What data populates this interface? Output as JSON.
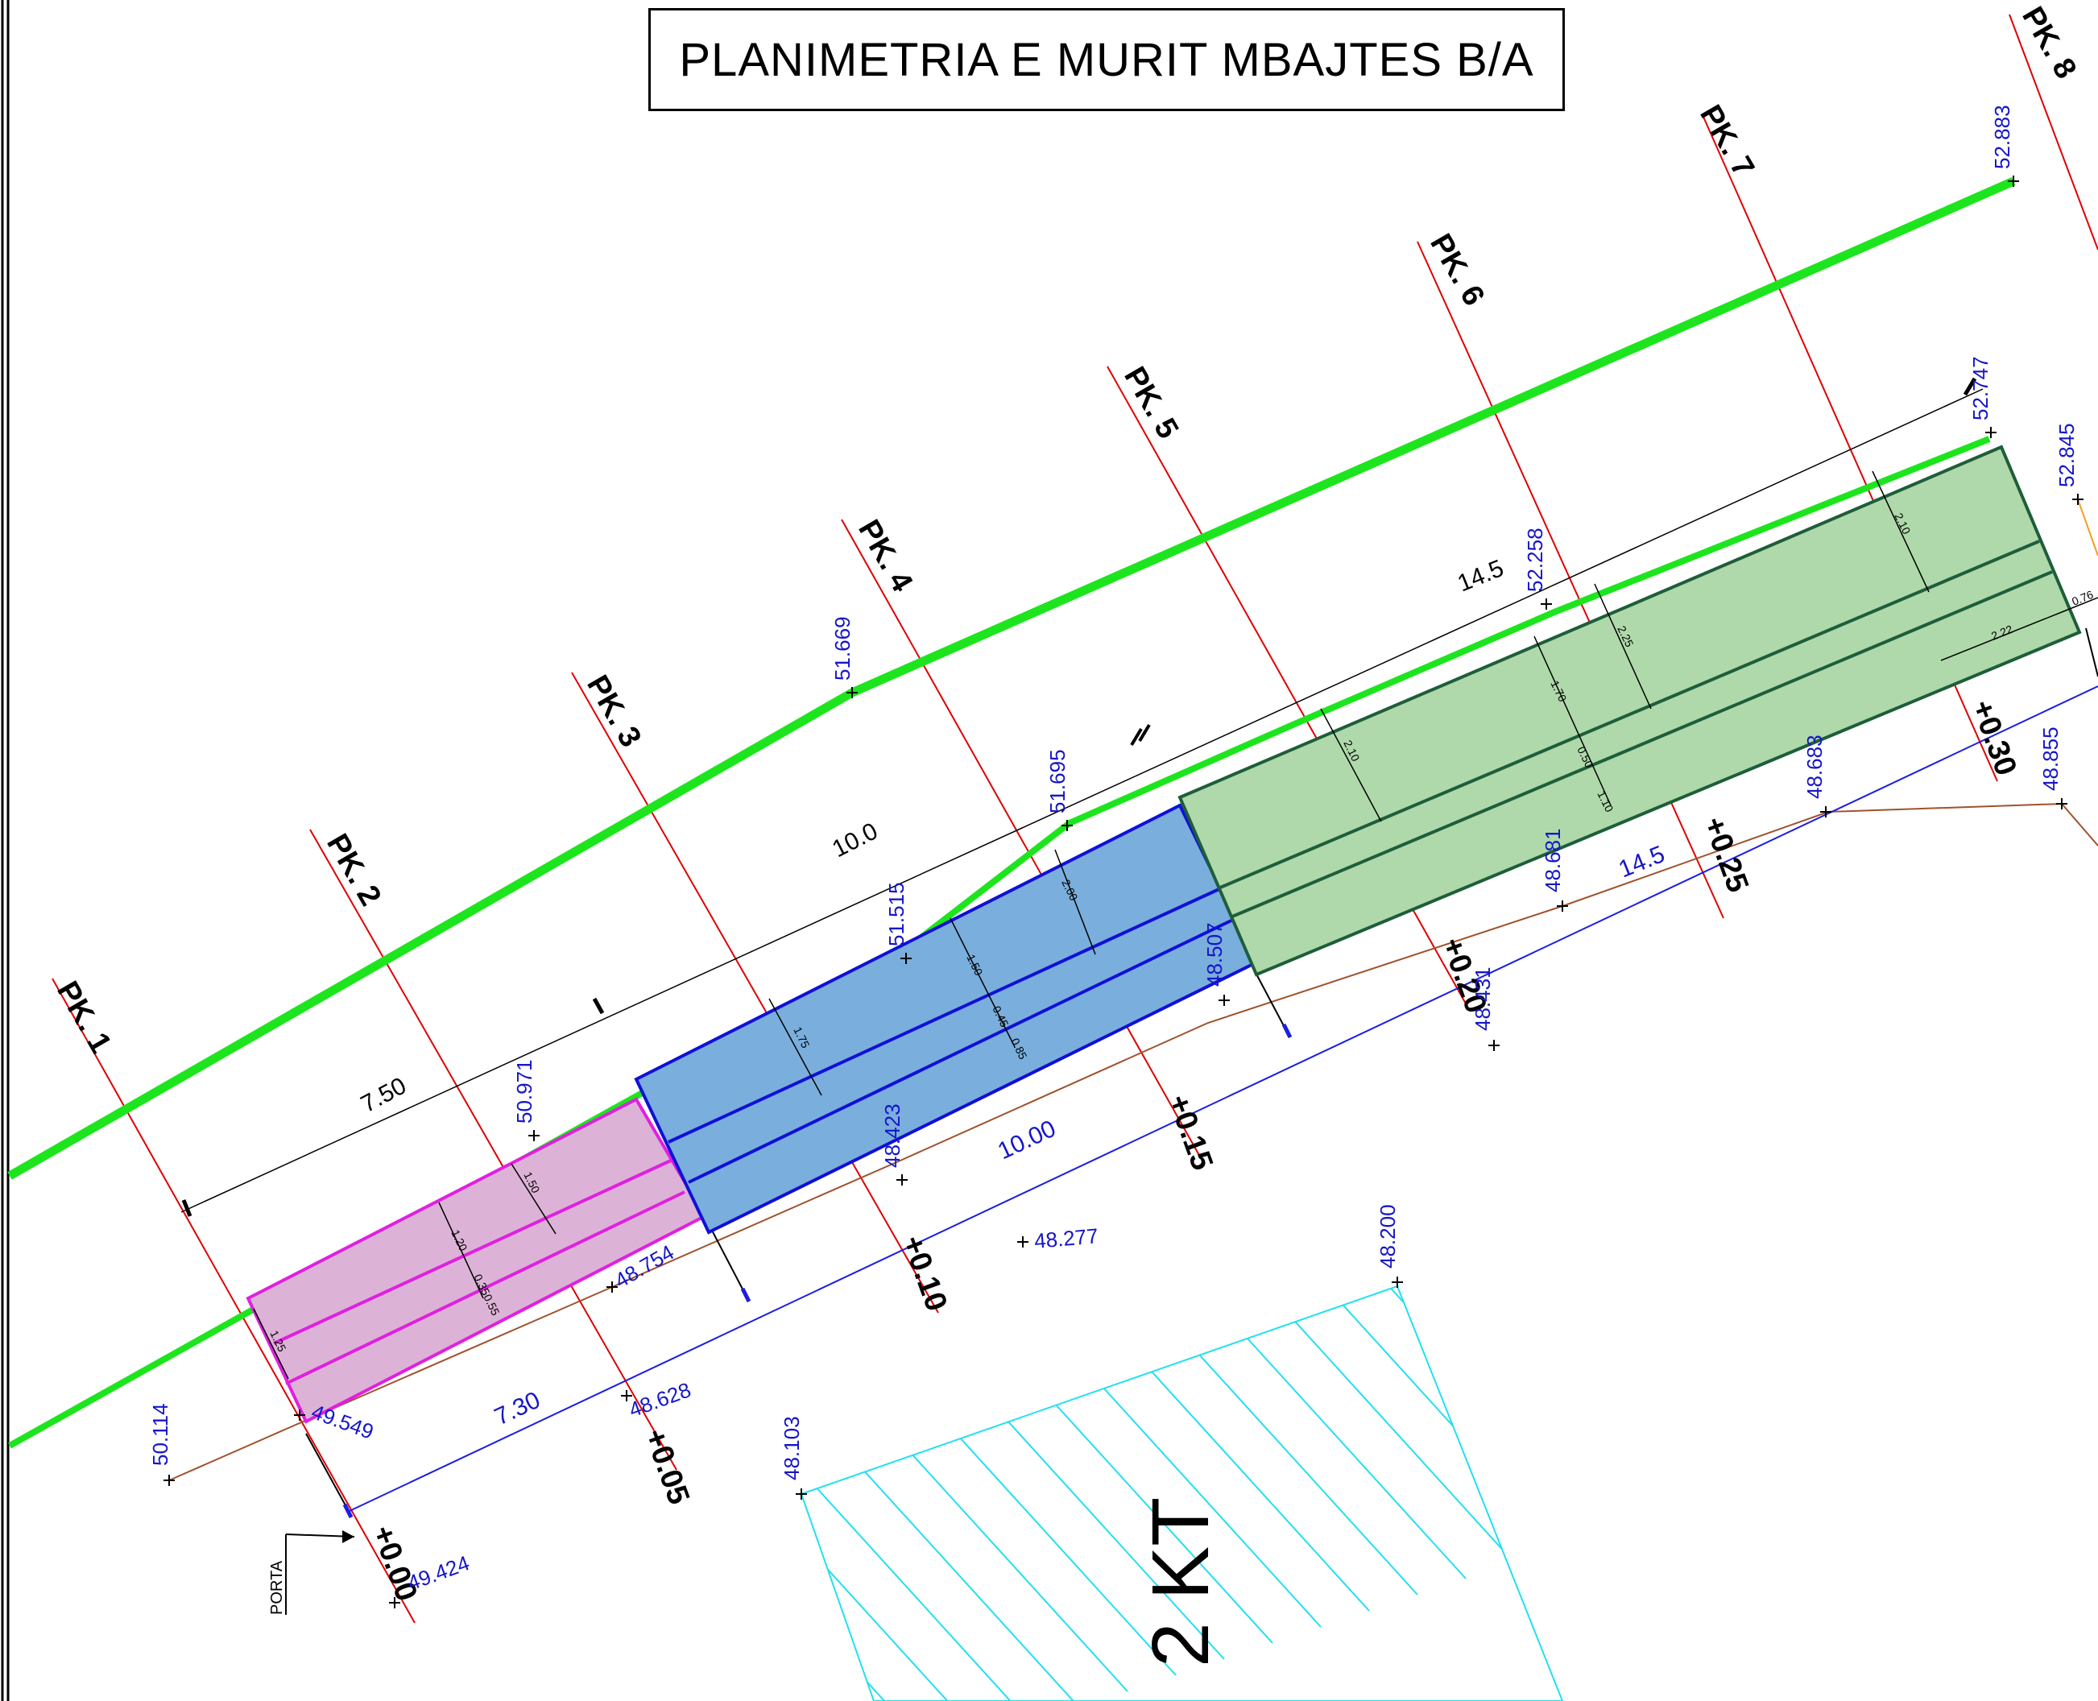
{
  "title": "PLANIMETRIA E MURIT MBAJTES B/A",
  "colors": {
    "ground_line": "#1de51d",
    "pk_line": "#e00000",
    "elevation_text": "#1616c8",
    "segment_1_fill": "#dcb3d6",
    "segment_1_stroke": "#e020e0",
    "segment_2_fill": "#7aaedc",
    "segment_2_stroke": "#1010d8",
    "segment_3_fill": "#afd9aa",
    "segment_3_stroke": "#1e5e3a",
    "base_line": "#1e1ee0",
    "terrain_line": "#a0522d",
    "hatch": "#22e0f0"
  },
  "sections": [
    {
      "label": "PK. 1",
      "chainage": "+0.00"
    },
    {
      "label": "PK. 2",
      "chainage": "+0.05"
    },
    {
      "label": "PK. 3",
      "chainage": "+0.10"
    },
    {
      "label": "PK. 4",
      "chainage": "+0.15"
    },
    {
      "label": "PK. 5",
      "chainage": "+0.20"
    },
    {
      "label": "PK. 6",
      "chainage": "+0.25"
    },
    {
      "label": "PK. 7",
      "chainage": "+0.30"
    },
    {
      "label": "PK. 8",
      "chainage": ""
    }
  ],
  "elevations": [
    "52.883",
    "52.747",
    "52.845",
    "52.258",
    "51.669",
    "51.695",
    "51.515",
    "50.971",
    "50.114",
    "49.549",
    "48.754",
    "48.628",
    "48.423",
    "48.507",
    "48.431",
    "48.681",
    "48.683",
    "48.855",
    "48.277",
    "48.200",
    "48.103",
    "49.424"
  ],
  "dimensions": {
    "upper": [
      "7.50",
      "10.0",
      "14.5"
    ],
    "lower": [
      "7.30",
      "10.00",
      "14.5"
    ],
    "segment_1": [
      "1.50",
      "1.20",
      "0.35",
      "0.55",
      "1.25"
    ],
    "segment_2": [
      "2.00",
      "1.50",
      "0.45",
      "0.85",
      "1.75"
    ],
    "segment_3": [
      "2.10",
      "2.25",
      "1.70",
      "0.50",
      "1.10",
      "2.10",
      "2.22",
      "0.76"
    ]
  },
  "labels": {
    "porta": "PORTA",
    "zone": "2 KT"
  }
}
